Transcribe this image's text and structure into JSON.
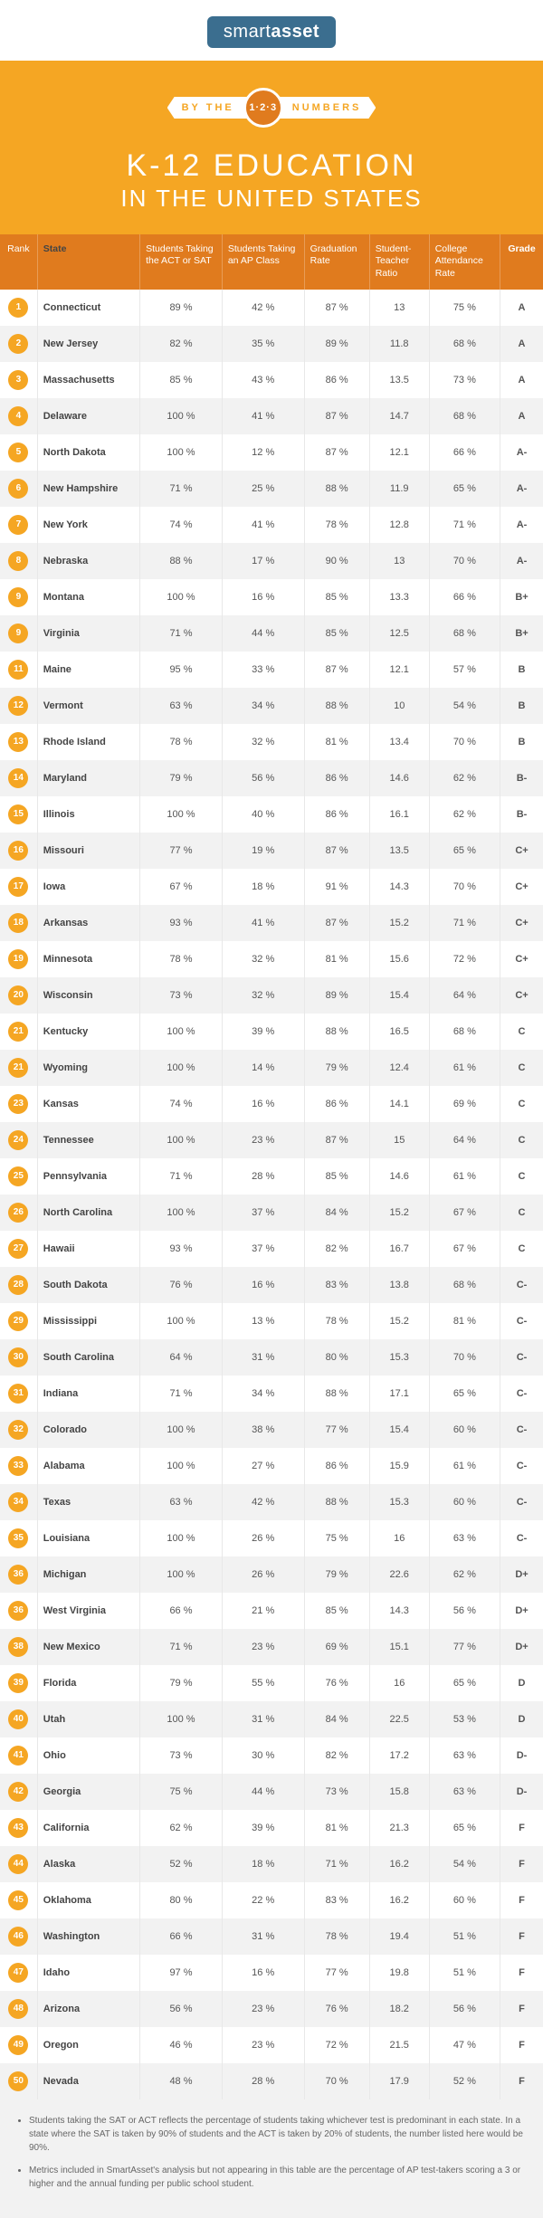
{
  "brand": {
    "part1": "smart",
    "part2": "asset"
  },
  "ribbon": {
    "left": "BY THE",
    "badge": "1·2·3",
    "right": "NUMBERS"
  },
  "title": "K-12 EDUCATION",
  "subtitle": "IN THE UNITED STATES",
  "columns": [
    "Rank",
    "State",
    "Students Taking the ACT or SAT",
    "Students Taking an AP Class",
    "Graduation Rate",
    "Student-Teacher Ratio",
    "College Attendance Rate",
    "Grade"
  ],
  "rows": [
    {
      "rank": "1",
      "state": "Connecticut",
      "sat": "89 %",
      "ap": "42 %",
      "grad": "87 %",
      "ratio": "13",
      "col": "75 %",
      "grade": "A"
    },
    {
      "rank": "2",
      "state": "New Jersey",
      "sat": "82 %",
      "ap": "35 %",
      "grad": "89 %",
      "ratio": "11.8",
      "col": "68 %",
      "grade": "A"
    },
    {
      "rank": "3",
      "state": "Massachusetts",
      "sat": "85 %",
      "ap": "43 %",
      "grad": "86 %",
      "ratio": "13.5",
      "col": "73 %",
      "grade": "A"
    },
    {
      "rank": "4",
      "state": "Delaware",
      "sat": "100 %",
      "ap": "41 %",
      "grad": "87 %",
      "ratio": "14.7",
      "col": "68 %",
      "grade": "A"
    },
    {
      "rank": "5",
      "state": "North Dakota",
      "sat": "100 %",
      "ap": "12 %",
      "grad": "87 %",
      "ratio": "12.1",
      "col": "66 %",
      "grade": "A-"
    },
    {
      "rank": "6",
      "state": "New Hampshire",
      "sat": "71 %",
      "ap": "25 %",
      "grad": "88 %",
      "ratio": "11.9",
      "col": "65 %",
      "grade": "A-"
    },
    {
      "rank": "7",
      "state": "New York",
      "sat": "74 %",
      "ap": "41 %",
      "grad": "78 %",
      "ratio": "12.8",
      "col": "71 %",
      "grade": "A-"
    },
    {
      "rank": "8",
      "state": "Nebraska",
      "sat": "88 %",
      "ap": "17 %",
      "grad": "90 %",
      "ratio": "13",
      "col": "70 %",
      "grade": "A-"
    },
    {
      "rank": "9",
      "state": "Montana",
      "sat": "100 %",
      "ap": "16 %",
      "grad": "85 %",
      "ratio": "13.3",
      "col": "66 %",
      "grade": "B+"
    },
    {
      "rank": "9",
      "state": "Virginia",
      "sat": "71 %",
      "ap": "44 %",
      "grad": "85 %",
      "ratio": "12.5",
      "col": "68 %",
      "grade": "B+"
    },
    {
      "rank": "11",
      "state": "Maine",
      "sat": "95 %",
      "ap": "33 %",
      "grad": "87 %",
      "ratio": "12.1",
      "col": "57 %",
      "grade": "B"
    },
    {
      "rank": "12",
      "state": "Vermont",
      "sat": "63 %",
      "ap": "34 %",
      "grad": "88 %",
      "ratio": "10",
      "col": "54 %",
      "grade": "B"
    },
    {
      "rank": "13",
      "state": "Rhode Island",
      "sat": "78 %",
      "ap": "32 %",
      "grad": "81 %",
      "ratio": "13.4",
      "col": "70 %",
      "grade": "B"
    },
    {
      "rank": "14",
      "state": "Maryland",
      "sat": "79 %",
      "ap": "56 %",
      "grad": "86 %",
      "ratio": "14.6",
      "col": "62 %",
      "grade": "B-"
    },
    {
      "rank": "15",
      "state": "Illinois",
      "sat": "100 %",
      "ap": "40 %",
      "grad": "86 %",
      "ratio": "16.1",
      "col": "62 %",
      "grade": "B-"
    },
    {
      "rank": "16",
      "state": "Missouri",
      "sat": "77 %",
      "ap": "19 %",
      "grad": "87 %",
      "ratio": "13.5",
      "col": "65 %",
      "grade": "C+"
    },
    {
      "rank": "17",
      "state": "Iowa",
      "sat": "67 %",
      "ap": "18 %",
      "grad": "91 %",
      "ratio": "14.3",
      "col": "70 %",
      "grade": "C+"
    },
    {
      "rank": "18",
      "state": "Arkansas",
      "sat": "93 %",
      "ap": "41 %",
      "grad": "87 %",
      "ratio": "15.2",
      "col": "71 %",
      "grade": "C+"
    },
    {
      "rank": "19",
      "state": "Minnesota",
      "sat": "78 %",
      "ap": "32 %",
      "grad": "81 %",
      "ratio": "15.6",
      "col": "72 %",
      "grade": "C+"
    },
    {
      "rank": "20",
      "state": "Wisconsin",
      "sat": "73 %",
      "ap": "32 %",
      "grad": "89 %",
      "ratio": "15.4",
      "col": "64 %",
      "grade": "C+"
    },
    {
      "rank": "21",
      "state": "Kentucky",
      "sat": "100 %",
      "ap": "39 %",
      "grad": "88 %",
      "ratio": "16.5",
      "col": "68 %",
      "grade": "C"
    },
    {
      "rank": "21",
      "state": "Wyoming",
      "sat": "100 %",
      "ap": "14 %",
      "grad": "79 %",
      "ratio": "12.4",
      "col": "61 %",
      "grade": "C"
    },
    {
      "rank": "23",
      "state": "Kansas",
      "sat": "74 %",
      "ap": "16 %",
      "grad": "86 %",
      "ratio": "14.1",
      "col": "69 %",
      "grade": "C"
    },
    {
      "rank": "24",
      "state": "Tennessee",
      "sat": "100 %",
      "ap": "23 %",
      "grad": "87 %",
      "ratio": "15",
      "col": "64 %",
      "grade": "C"
    },
    {
      "rank": "25",
      "state": "Pennsylvania",
      "sat": "71 %",
      "ap": "28 %",
      "grad": "85 %",
      "ratio": "14.6",
      "col": "61 %",
      "grade": "C"
    },
    {
      "rank": "26",
      "state": "North Carolina",
      "sat": "100 %",
      "ap": "37 %",
      "grad": "84 %",
      "ratio": "15.2",
      "col": "67 %",
      "grade": "C"
    },
    {
      "rank": "27",
      "state": "Hawaii",
      "sat": "93 %",
      "ap": "37 %",
      "grad": "82 %",
      "ratio": "16.7",
      "col": "67 %",
      "grade": "C"
    },
    {
      "rank": "28",
      "state": "South Dakota",
      "sat": "76 %",
      "ap": "16 %",
      "grad": "83 %",
      "ratio": "13.8",
      "col": "68 %",
      "grade": "C-"
    },
    {
      "rank": "29",
      "state": "Mississippi",
      "sat": "100 %",
      "ap": "13 %",
      "grad": "78 %",
      "ratio": "15.2",
      "col": "81 %",
      "grade": "C-"
    },
    {
      "rank": "30",
      "state": "South Carolina",
      "sat": "64 %",
      "ap": "31 %",
      "grad": "80 %",
      "ratio": "15.3",
      "col": "70 %",
      "grade": "C-"
    },
    {
      "rank": "31",
      "state": "Indiana",
      "sat": "71 %",
      "ap": "34 %",
      "grad": "88 %",
      "ratio": "17.1",
      "col": "65 %",
      "grade": "C-"
    },
    {
      "rank": "32",
      "state": "Colorado",
      "sat": "100 %",
      "ap": "38 %",
      "grad": "77 %",
      "ratio": "15.4",
      "col": "60 %",
      "grade": "C-"
    },
    {
      "rank": "33",
      "state": "Alabama",
      "sat": "100 %",
      "ap": "27 %",
      "grad": "86 %",
      "ratio": "15.9",
      "col": "61 %",
      "grade": "C-"
    },
    {
      "rank": "34",
      "state": "Texas",
      "sat": "63 %",
      "ap": "42 %",
      "grad": "88 %",
      "ratio": "15.3",
      "col": "60 %",
      "grade": "C-"
    },
    {
      "rank": "35",
      "state": "Louisiana",
      "sat": "100 %",
      "ap": "26 %",
      "grad": "75 %",
      "ratio": "16",
      "col": "63 %",
      "grade": "C-"
    },
    {
      "rank": "36",
      "state": "Michigan",
      "sat": "100 %",
      "ap": "26 %",
      "grad": "79 %",
      "ratio": "22.6",
      "col": "62 %",
      "grade": "D+"
    },
    {
      "rank": "36",
      "state": "West Virginia",
      "sat": "66 %",
      "ap": "21 %",
      "grad": "85 %",
      "ratio": "14.3",
      "col": "56 %",
      "grade": "D+"
    },
    {
      "rank": "38",
      "state": "New Mexico",
      "sat": "71 %",
      "ap": "23 %",
      "grad": "69 %",
      "ratio": "15.1",
      "col": "77 %",
      "grade": "D+"
    },
    {
      "rank": "39",
      "state": "Florida",
      "sat": "79 %",
      "ap": "55 %",
      "grad": "76 %",
      "ratio": "16",
      "col": "65 %",
      "grade": "D"
    },
    {
      "rank": "40",
      "state": "Utah",
      "sat": "100 %",
      "ap": "31 %",
      "grad": "84 %",
      "ratio": "22.5",
      "col": "53 %",
      "grade": "D"
    },
    {
      "rank": "41",
      "state": "Ohio",
      "sat": "73 %",
      "ap": "30 %",
      "grad": "82 %",
      "ratio": "17.2",
      "col": "63 %",
      "grade": "D-"
    },
    {
      "rank": "42",
      "state": "Georgia",
      "sat": "75 %",
      "ap": "44 %",
      "grad": "73 %",
      "ratio": "15.8",
      "col": "63 %",
      "grade": "D-"
    },
    {
      "rank": "43",
      "state": "California",
      "sat": "62 %",
      "ap": "39 %",
      "grad": "81 %",
      "ratio": "21.3",
      "col": "65 %",
      "grade": "F"
    },
    {
      "rank": "44",
      "state": "Alaska",
      "sat": "52 %",
      "ap": "18 %",
      "grad": "71 %",
      "ratio": "16.2",
      "col": "54 %",
      "grade": "F"
    },
    {
      "rank": "45",
      "state": "Oklahoma",
      "sat": "80 %",
      "ap": "22 %",
      "grad": "83 %",
      "ratio": "16.2",
      "col": "60 %",
      "grade": "F"
    },
    {
      "rank": "46",
      "state": "Washington",
      "sat": "66 %",
      "ap": "31 %",
      "grad": "78 %",
      "ratio": "19.4",
      "col": "51 %",
      "grade": "F"
    },
    {
      "rank": "47",
      "state": "Idaho",
      "sat": "97 %",
      "ap": "16 %",
      "grad": "77 %",
      "ratio": "19.8",
      "col": "51 %",
      "grade": "F"
    },
    {
      "rank": "48",
      "state": "Arizona",
      "sat": "56 %",
      "ap": "23 %",
      "grad": "76 %",
      "ratio": "18.2",
      "col": "56 %",
      "grade": "F"
    },
    {
      "rank": "49",
      "state": "Oregon",
      "sat": "46 %",
      "ap": "23 %",
      "grad": "72 %",
      "ratio": "21.5",
      "col": "47 %",
      "grade": "F"
    },
    {
      "rank": "50",
      "state": "Nevada",
      "sat": "48 %",
      "ap": "28 %",
      "grad": "70 %",
      "ratio": "17.9",
      "col": "52 %",
      "grade": "F"
    }
  ],
  "footnotes": [
    "Students taking the SAT or ACT reflects the percentage of students taking whichever test is predominant in each state. In a state where the SAT is taken by 90% of students and the ACT is taken by 20% of students, the number listed here would be 90%.",
    "Metrics included in SmartAsset's analysis but not appearing in this table are the percentage of AP test-takers scoring a 3 or higher and the annual funding per public school student."
  ],
  "colors": {
    "header_bg": "#f5a623",
    "col_header_bg": "#e07b1e",
    "row_alt_bg": "#f2f2f2",
    "badge_bg": "#f5a623",
    "logo_bg": "#3b6e8f"
  }
}
